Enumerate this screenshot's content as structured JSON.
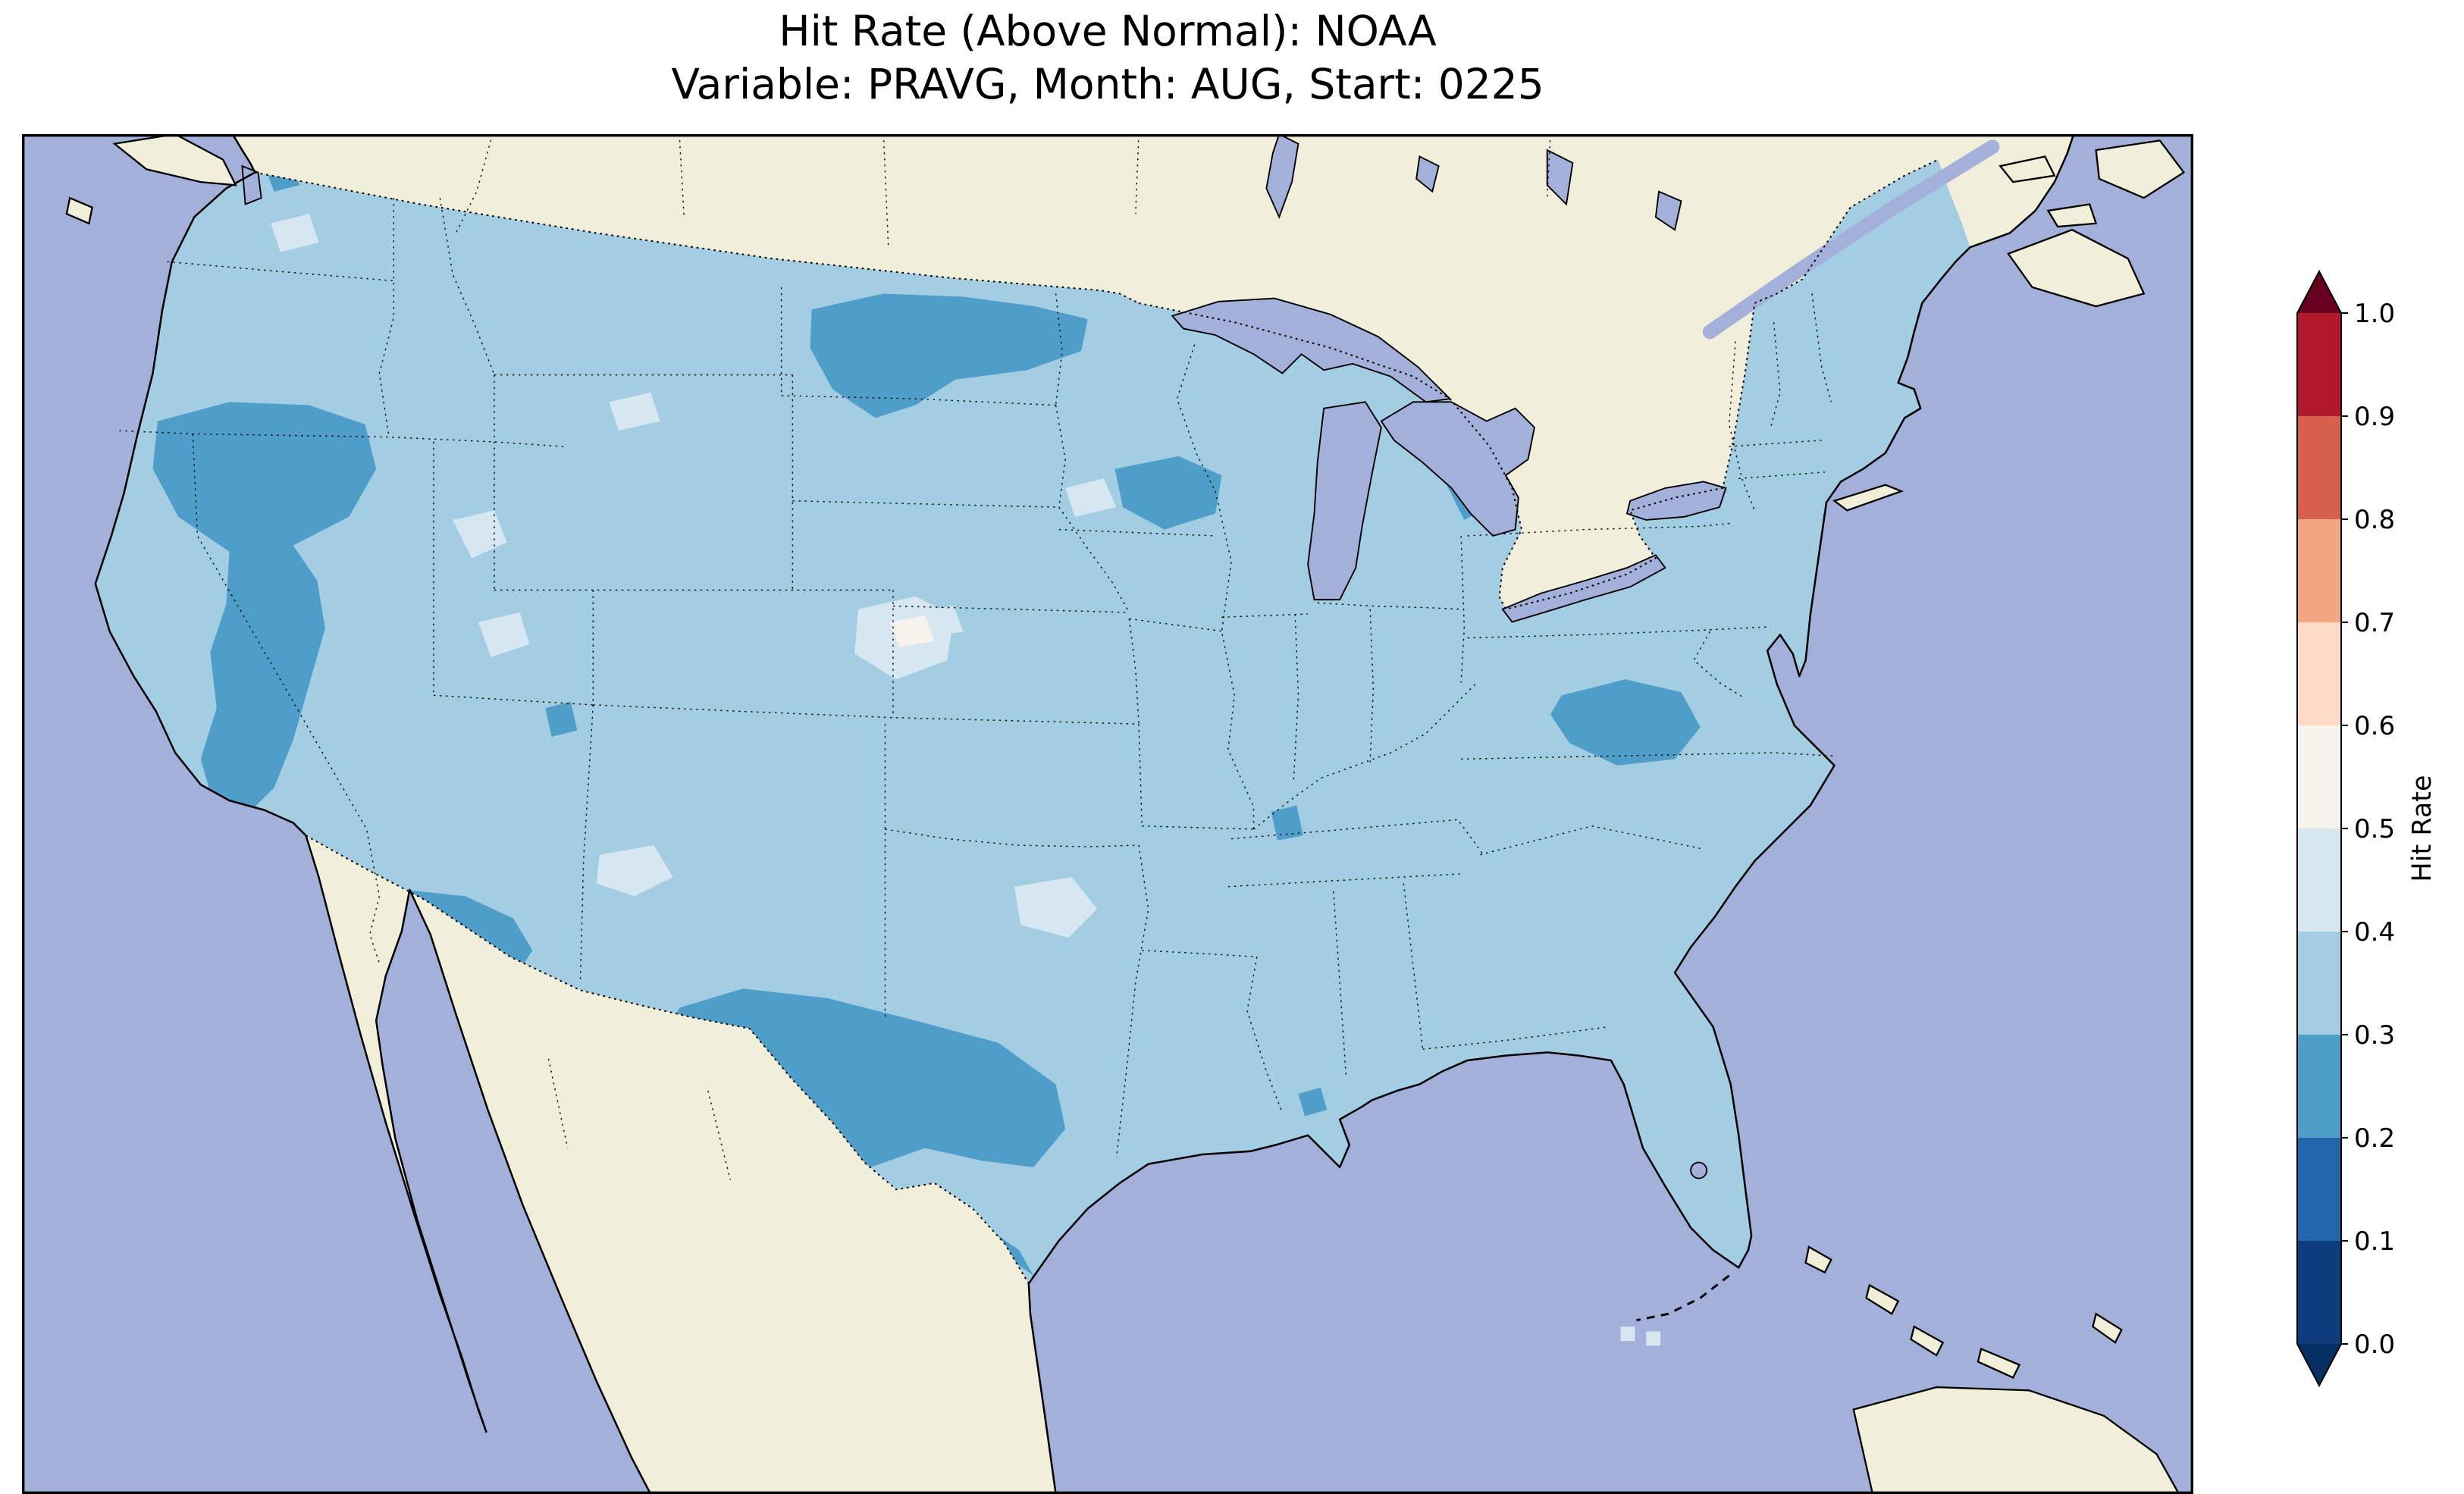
{
  "title": {
    "line1": "Hit Rate (Above Normal): NOAA",
    "line2": "Variable: PRAVG, Month: AUG, Start: 0225"
  },
  "chart_data": {
    "type": "heatmap",
    "title": "Hit Rate (Above Normal): NOAA",
    "subtitle": "Variable: PRAVG, Month: AUG, Start: 0225",
    "metric": "Hit Rate (Above Normal)",
    "source": "NOAA",
    "variable": "PRAVG",
    "month": "AUG",
    "start": "0225",
    "map_colors": {
      "ocean": "#a3b0da",
      "lakes": "#a3b0da",
      "land": "#f1eeda",
      "coastline": "#000000"
    },
    "colorbar": {
      "label": "Hit Rate",
      "orientation": "vertical",
      "position": "right",
      "extend": "both",
      "ticks": [
        0.0,
        0.1,
        0.2,
        0.3,
        0.4,
        0.5,
        0.6,
        0.7,
        0.8,
        0.9,
        1.0
      ],
      "bins": [
        {
          "range": [
            0.0,
            0.1
          ],
          "color": "#0d3d7c"
        },
        {
          "range": [
            0.1,
            0.2
          ],
          "color": "#2166ac"
        },
        {
          "range": [
            0.2,
            0.3
          ],
          "color": "#4f9dc9"
        },
        {
          "range": [
            0.3,
            0.4
          ],
          "color": "#a3cde2"
        },
        {
          "range": [
            0.4,
            0.5
          ],
          "color": "#d6e7f1"
        },
        {
          "range": [
            0.5,
            0.6
          ],
          "color": "#f7f2ec"
        },
        {
          "range": [
            0.6,
            0.7
          ],
          "color": "#fddbc7"
        },
        {
          "range": [
            0.7,
            0.8
          ],
          "color": "#f4a582"
        },
        {
          "range": [
            0.8,
            0.9
          ],
          "color": "#d6604d"
        },
        {
          "range": [
            0.9,
            1.0
          ],
          "color": "#b2182b"
        }
      ],
      "extend_colors": {
        "below": "#053061",
        "above": "#67001f"
      }
    },
    "regions": [
      {
        "name": "Most of CONUS (background)",
        "hit_rate_range": [
          0.3,
          0.4
        ]
      },
      {
        "name": "West / Central Texas and Rio Grande",
        "hit_rate_range": [
          0.2,
          0.3
        ]
      },
      {
        "name": "Southern Arizona border",
        "hit_rate_range": [
          0.2,
          0.3
        ]
      },
      {
        "name": "Northern Nevada / SE Oregon Great Basin",
        "hit_rate_range": [
          0.2,
          0.3
        ]
      },
      {
        "name": "Western Nevada / Eastern California Sierra strip",
        "hit_rate_range": [
          0.2,
          0.3
        ]
      },
      {
        "name": "North Dakota / NW Minnesota",
        "hit_rate_range": [
          0.2,
          0.3
        ]
      },
      {
        "name": "West-central Wisconsin / E Minnesota",
        "hit_rate_range": [
          0.2,
          0.3
        ]
      },
      {
        "name": "Central Lower Michigan (small)",
        "hit_rate_range": [
          0.2,
          0.3
        ]
      },
      {
        "name": "Virginia / North Carolina piedmont",
        "hit_rate_range": [
          0.2,
          0.3
        ]
      },
      {
        "name": "Coastal New England (small)",
        "hit_rate_range": [
          0.2,
          0.3
        ]
      },
      {
        "name": "Central Colorado patch",
        "hit_rate_range": [
          0.4,
          0.6
        ]
      },
      {
        "name": "Utah patches (incl. Great Salt Lake area)",
        "hit_rate_range": [
          0.4,
          0.5
        ]
      },
      {
        "name": "AZ/NM border patch",
        "hit_rate_range": [
          0.4,
          0.5
        ]
      },
      {
        "name": "Central Missouri patch",
        "hit_rate_range": [
          0.4,
          0.5
        ]
      },
      {
        "name": "Scattered small pale patches (MT, MN, NE, WA)",
        "hit_rate_range": [
          0.4,
          0.5
        ]
      },
      {
        "name": "Small dark dots (S Georgia, MS/AL, SE Colorado, Illinois)",
        "hit_rate_range": [
          0.2,
          0.3
        ]
      }
    ]
  }
}
